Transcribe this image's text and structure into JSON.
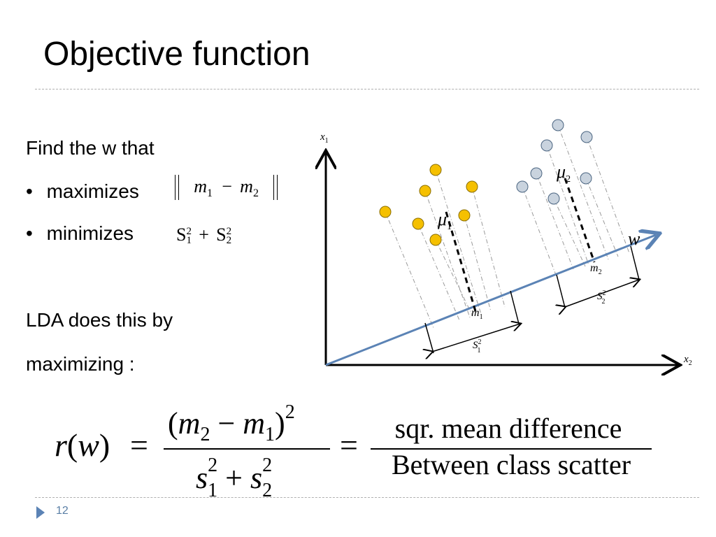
{
  "slide": {
    "title": "Objective function",
    "page_number": "12"
  },
  "left_text": {
    "intro": "Find the w that",
    "bullet1": "maximizes",
    "bullet2": "minimizes",
    "lda_line1": "LDA does this by",
    "lda_line2": "maximizing :"
  },
  "math_labels": {
    "m": "m",
    "s": "S",
    "sub1": "1",
    "sub2": "2",
    "sup2": "2",
    "minus": "−",
    "plus": "+"
  },
  "diagram": {
    "x1_axis_label": "x",
    "x2_axis_label": "x",
    "w_label": "w",
    "mu_symbol": "μ",
    "m_symbol": "m",
    "s_symbol": "S",
    "class1_color": "#f5c000",
    "class2_color": "#c9d3de",
    "projection_line_color": "#5b83b5"
  },
  "formula": {
    "lhs": "r(w)",
    "equals": "=",
    "numerator_text": "(m₂ − m₁)²",
    "denominator_text": "s₁² + s₂²",
    "rhs_numerator": "sqr. mean difference",
    "rhs_denominator": "Between class scatter"
  }
}
